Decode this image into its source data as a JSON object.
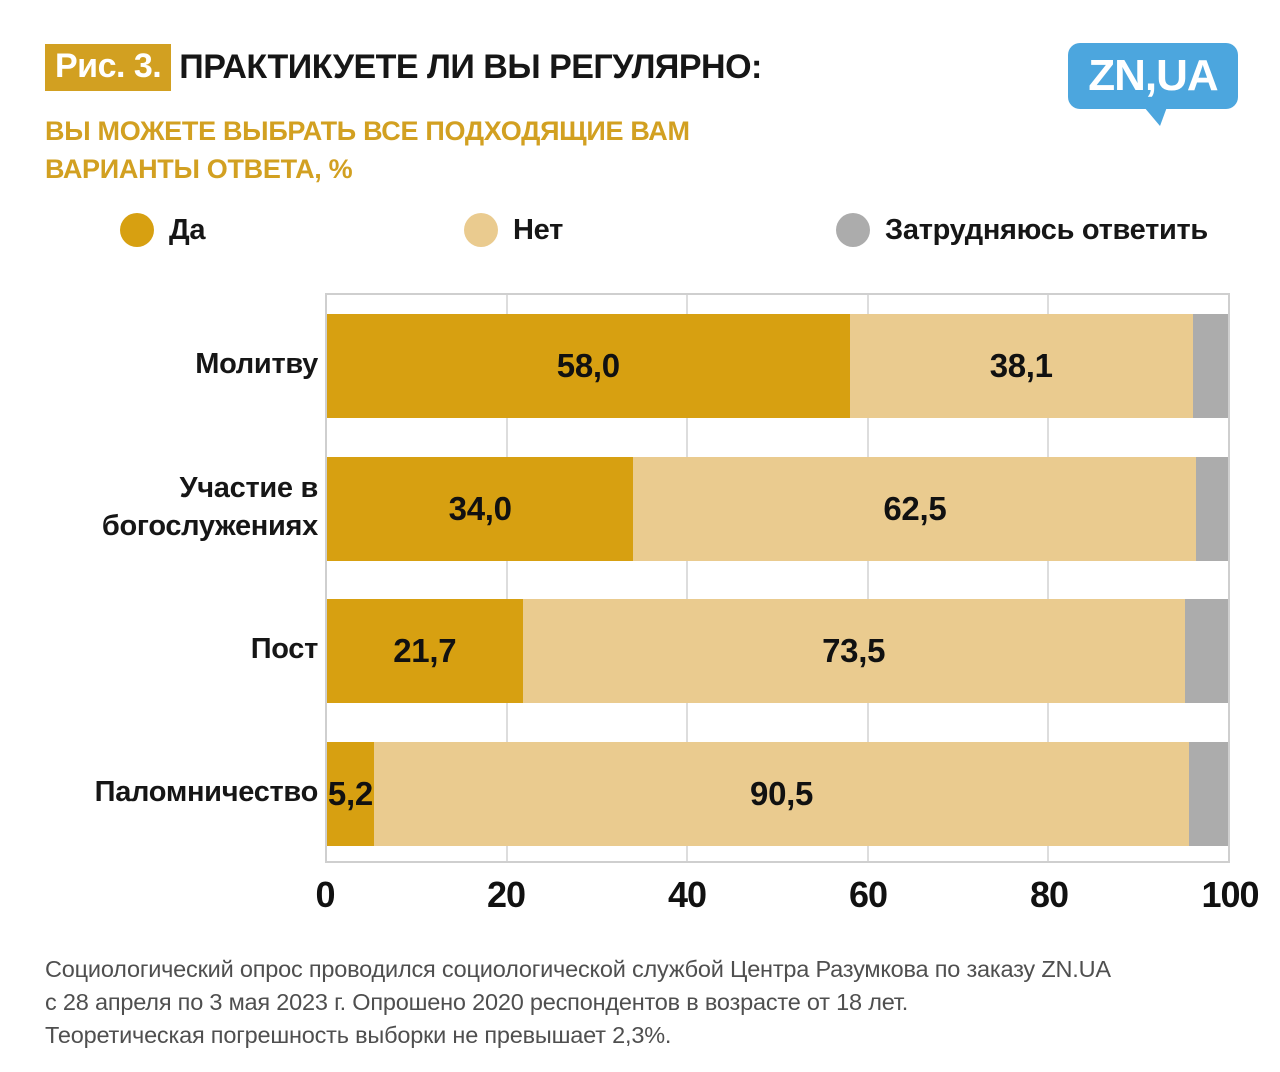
{
  "header": {
    "figure_label": "Рис. 3.",
    "title": "ПРАКТИКУЕТЕ ЛИ ВЫ РЕГУЛЯРНО:",
    "subtitle_line1": "ВЫ МОЖЕТЕ ВЫБРАТЬ ВСЕ ПОДХОДЯЩИЕ ВАМ",
    "subtitle_line2": "ВАРИАНТЫ ОТВЕТА, %"
  },
  "logo": {
    "text": "ZN,UA",
    "color": "#4CA6DE"
  },
  "colors": {
    "accent_gold": "#D2A021",
    "bar_yes": "#D7A011",
    "bar_no": "#EACB8F",
    "bar_dk": "#ACACAC",
    "footnote_gray": "#4F4F4F"
  },
  "legend": [
    {
      "label": "Да",
      "color": "#D7A011"
    },
    {
      "label": "Нет",
      "color": "#EACB8F"
    },
    {
      "label": "Затрудняюсь ответить",
      "color": "#ACACAC"
    }
  ],
  "chart_data": {
    "type": "bar",
    "stacked": true,
    "orientation": "horizontal",
    "categories": [
      "Молитву",
      "Участие в богослужениях",
      "Пост",
      "Паломничество"
    ],
    "series": [
      {
        "name": "Да",
        "color": "#D7A011",
        "show_labels": true,
        "values": [
          58.0,
          34.0,
          21.7,
          5.2
        ],
        "labels": [
          "58,0",
          "34,0",
          "21,7",
          "5,2"
        ]
      },
      {
        "name": "Нет",
        "color": "#EACB8F",
        "show_labels": true,
        "values": [
          38.1,
          62.5,
          73.5,
          90.5
        ],
        "labels": [
          "38,1",
          "62,5",
          "73,5",
          "90,5"
        ]
      },
      {
        "name": "Затрудняюсь ответить",
        "color": "#ACACAC",
        "show_labels": false,
        "values": [
          3.9,
          3.5,
          4.8,
          4.3
        ],
        "labels": [
          "",
          "",
          "",
          ""
        ]
      }
    ],
    "xlim": [
      0,
      100
    ],
    "x_ticks": [
      "0",
      "20",
      "40",
      "60",
      "80",
      "100"
    ],
    "grid": true,
    "legend_position": "top"
  },
  "footnote": {
    "line1": "Социологический опрос проводился социологической службой Центра Разумкова по заказу ZN.UA",
    "line2": "с 28 апреля по 3 мая 2023 г. Опрошено 2020 респондентов в возрасте от 18 лет.",
    "line3": "Теоретическая погрешность выборки не превышает 2,3%."
  }
}
